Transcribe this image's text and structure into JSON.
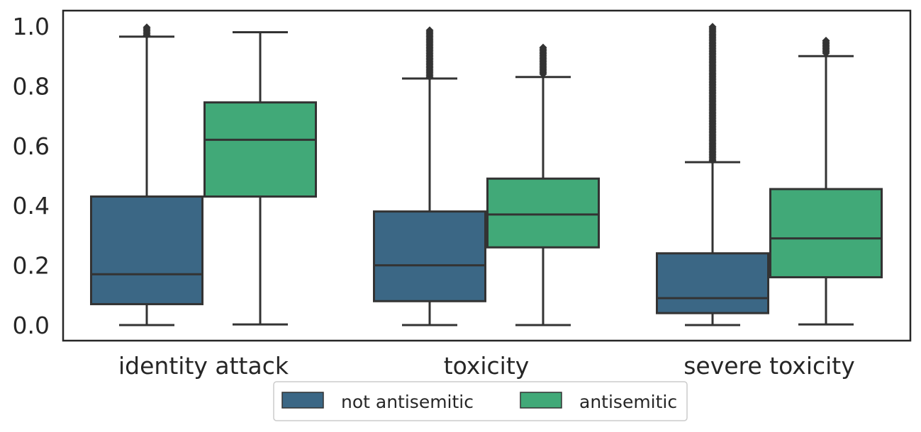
{
  "chart_data": {
    "type": "box",
    "categories": [
      "identity attack",
      "toxicity",
      "severe toxicity"
    ],
    "ylim": [
      -0.05,
      1.05
    ],
    "yticks": [
      "0.0",
      "0.2",
      "0.4",
      "0.6",
      "0.8",
      "1.0"
    ],
    "ytick_values": [
      0.0,
      0.2,
      0.4,
      0.6,
      0.8,
      1.0
    ],
    "grid": false,
    "legend_position": "bottom-center",
    "series": [
      {
        "name": "not antisemitic",
        "color": "#3b6785",
        "boxes": [
          {
            "whisker_low": 0.0,
            "q1": 0.07,
            "median": 0.17,
            "q3": 0.43,
            "whisker_high": 0.965,
            "outliers_from": 0.97,
            "outliers_to": 1.0
          },
          {
            "whisker_low": 0.0,
            "q1": 0.08,
            "median": 0.2,
            "q3": 0.38,
            "whisker_high": 0.825,
            "outliers_from": 0.83,
            "outliers_to": 0.99
          },
          {
            "whisker_low": 0.0,
            "q1": 0.04,
            "median": 0.09,
            "q3": 0.24,
            "whisker_high": 0.545,
            "outliers_from": 0.55,
            "outliers_to": 1.0
          }
        ]
      },
      {
        "name": "antisemitic",
        "color": "#41a978",
        "boxes": [
          {
            "whisker_low": 0.002,
            "q1": 0.43,
            "median": 0.62,
            "q3": 0.745,
            "whisker_high": 0.98,
            "outliers_from": null,
            "outliers_to": null
          },
          {
            "whisker_low": 0.0,
            "q1": 0.26,
            "median": 0.37,
            "q3": 0.49,
            "whisker_high": 0.83,
            "outliers_from": 0.84,
            "outliers_to": 0.93
          },
          {
            "whisker_low": 0.002,
            "q1": 0.16,
            "median": 0.29,
            "q3": 0.455,
            "whisker_high": 0.9,
            "outliers_from": 0.91,
            "outliers_to": 0.955
          }
        ]
      }
    ]
  },
  "legend": {
    "items": [
      {
        "label": "not antisemitic",
        "color": "#3b6785"
      },
      {
        "label": "antisemitic",
        "color": "#41a978"
      }
    ]
  }
}
